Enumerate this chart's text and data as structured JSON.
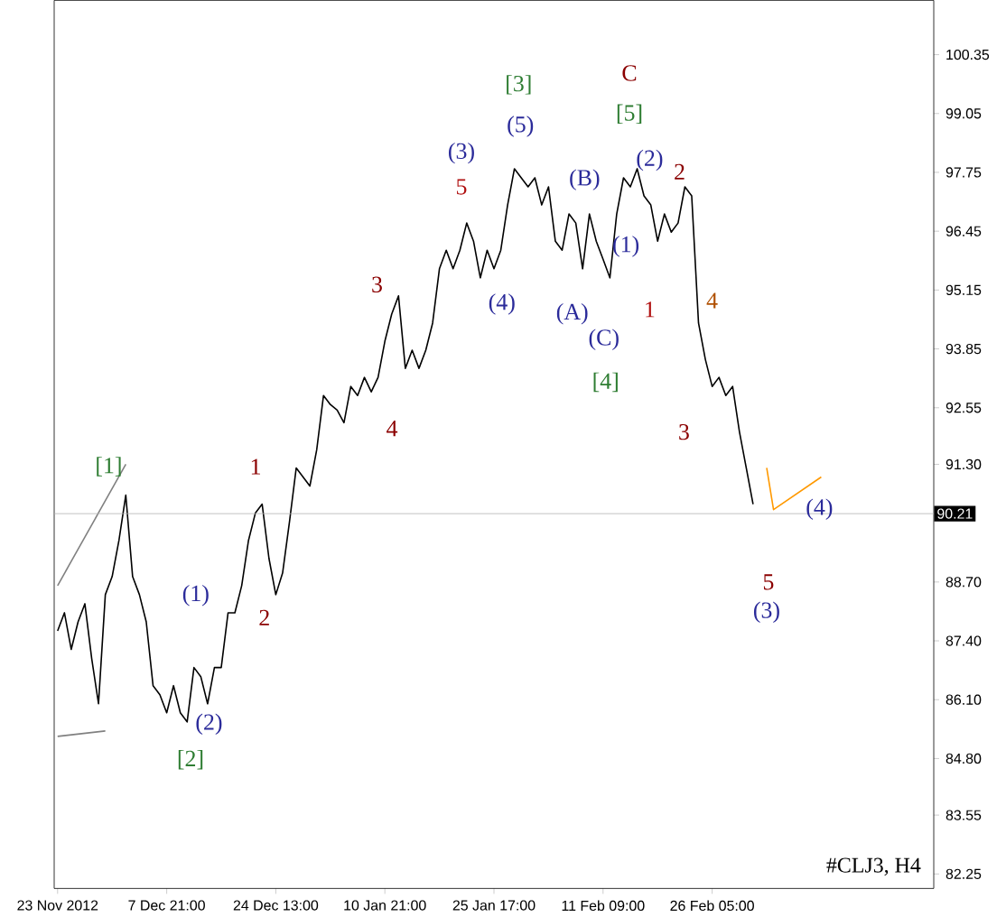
{
  "chart_data": {
    "type": "line",
    "categories": [
      "23 Nov 2012",
      null,
      null,
      null,
      null,
      null,
      null,
      null,
      null,
      null,
      null,
      null,
      null,
      null,
      null,
      null,
      "7 Dec 21:00",
      null,
      null,
      null,
      null,
      null,
      null,
      null,
      null,
      null,
      null,
      null,
      null,
      null,
      null,
      null,
      "24 Dec 13:00",
      null,
      null,
      null,
      null,
      null,
      null,
      null,
      null,
      null,
      null,
      null,
      null,
      null,
      null,
      null,
      "10 Jan 21:00",
      null,
      null,
      null,
      null,
      null,
      null,
      null,
      null,
      null,
      null,
      null,
      null,
      null,
      null,
      null,
      "25 Jan 17:00",
      null,
      null,
      null,
      null,
      null,
      null,
      null,
      null,
      null,
      null,
      null,
      null,
      null,
      null,
      null,
      "11 Feb 09:00",
      null,
      null,
      null,
      null,
      null,
      null,
      null,
      null,
      null,
      null,
      null,
      null,
      null,
      null,
      null,
      "26 Feb 05:00",
      null,
      null,
      null,
      null,
      null,
      null,
      null,
      null,
      null,
      null,
      null,
      null,
      null,
      null,
      null,
      null
    ],
    "ylim": [
      81.93,
      101.55
    ],
    "yticks": [
      {
        "value": 100.35,
        "label": "100.35"
      },
      {
        "value": 99.05,
        "label": "99.05"
      },
      {
        "value": 97.75,
        "label": "97.75"
      },
      {
        "value": 96.45,
        "label": "96.45"
      },
      {
        "value": 95.15,
        "label": "95.15"
      },
      {
        "value": 93.85,
        "label": "93.85"
      },
      {
        "value": 92.55,
        "label": "92.55"
      },
      {
        "value": 91.3,
        "label": "91.30"
      },
      {
        "value": 88.7,
        "label": "88.70"
      },
      {
        "value": 87.4,
        "label": "87.40"
      },
      {
        "value": 86.1,
        "label": "86.10"
      },
      {
        "value": 84.8,
        "label": "84.80"
      },
      {
        "value": 83.55,
        "label": "83.55"
      },
      {
        "value": 82.25,
        "label": "82.25"
      }
    ],
    "grid": false,
    "marker": "none",
    "line_style": "solid",
    "series": [
      {
        "color": "#000000",
        "values": [
          87.62,
          88.02,
          87.21,
          87.82,
          88.22,
          87.01,
          86.01,
          88.42,
          88.82,
          89.62,
          90.62,
          88.82,
          88.42,
          87.82,
          86.41,
          86.21,
          85.81,
          86.41,
          85.81,
          85.61,
          86.81,
          86.61,
          86.01,
          86.81,
          86.81,
          88.02,
          88.02,
          88.62,
          89.62,
          90.22,
          90.42,
          89.22,
          88.42,
          88.9,
          90.02,
          91.22,
          91.02,
          90.82,
          91.62,
          92.82,
          92.62,
          92.5,
          92.22,
          93.02,
          92.82,
          93.22,
          92.9,
          93.22,
          94.02,
          94.62,
          95.02,
          93.42,
          93.82,
          93.42,
          93.82,
          94.42,
          95.62,
          96.03,
          95.62,
          96.03,
          96.63,
          96.23,
          95.42,
          96.03,
          95.62,
          96.03,
          97.03,
          97.83,
          97.63,
          97.43,
          97.63,
          97.03,
          97.43,
          96.23,
          96.03,
          96.83,
          96.63,
          95.62,
          96.83,
          96.23,
          95.83,
          95.42,
          96.83,
          97.63,
          97.43,
          97.83,
          97.23,
          97.03,
          96.23,
          96.83,
          96.43,
          96.63,
          97.43,
          97.23,
          94.42,
          93.62,
          93.02,
          93.22,
          92.82,
          93.02,
          92.02,
          91.22,
          90.42,
          null,
          null,
          null,
          null,
          null,
          null,
          null,
          null,
          null,
          null
        ]
      },
      {
        "color": "#808080",
        "values": [
          88.62,
          null,
          null,
          null,
          null,
          null,
          null,
          null,
          null,
          null,
          91.3,
          null,
          null,
          null,
          null,
          null,
          null,
          null,
          null,
          null,
          null,
          null,
          null,
          null,
          null,
          null,
          null,
          null,
          null,
          null,
          null,
          null,
          null,
          null,
          null,
          null,
          null,
          null,
          null,
          null,
          null,
          null,
          null,
          null,
          null,
          null,
          null,
          null,
          null,
          null,
          null,
          null,
          null,
          null,
          null,
          null,
          null,
          null,
          null,
          null,
          null,
          null,
          null,
          null,
          null,
          null,
          null,
          null,
          null,
          null,
          null,
          null,
          null,
          null,
          null,
          null,
          null,
          null,
          null,
          null,
          null,
          null,
          null,
          null,
          null,
          null,
          null,
          null,
          null,
          null,
          null,
          null,
          null,
          null,
          null,
          null,
          null,
          null,
          null,
          null,
          null,
          null,
          null,
          null,
          null,
          null,
          null,
          null,
          null,
          null,
          null,
          null,
          null
        ]
      },
      {
        "color": "#808080",
        "values": [
          85.29,
          null,
          null,
          null,
          null,
          null,
          null,
          85.41,
          null,
          null,
          null,
          null,
          null,
          null,
          null,
          null,
          null,
          null,
          null,
          null,
          null,
          null,
          null,
          null,
          null,
          null,
          null,
          null,
          null,
          null,
          null,
          null,
          null,
          null,
          null,
          null,
          null,
          null,
          null,
          null,
          null,
          null,
          null,
          null,
          null,
          null,
          null,
          null,
          null,
          null,
          null,
          null,
          null,
          null,
          null,
          null,
          null,
          null,
          null,
          null,
          null,
          null,
          null,
          null,
          null,
          null,
          null,
          null,
          null,
          null,
          null,
          null,
          null,
          null,
          null,
          null,
          null,
          null,
          null,
          null,
          null,
          null,
          null,
          null,
          null,
          null,
          null,
          null,
          null,
          null,
          null,
          null,
          null,
          null,
          null,
          null,
          null,
          null,
          null,
          null,
          null,
          null,
          null,
          null,
          null,
          null,
          null,
          null,
          null,
          null,
          null,
          null,
          null
        ]
      },
      {
        "color": "#ff9900",
        "values": [
          null,
          null,
          null,
          null,
          null,
          null,
          null,
          null,
          null,
          null,
          null,
          null,
          null,
          null,
          null,
          null,
          null,
          null,
          null,
          null,
          null,
          null,
          null,
          null,
          null,
          null,
          null,
          null,
          null,
          null,
          null,
          null,
          null,
          null,
          null,
          null,
          null,
          null,
          null,
          null,
          null,
          null,
          null,
          null,
          null,
          null,
          null,
          null,
          null,
          null,
          null,
          null,
          null,
          null,
          null,
          null,
          null,
          null,
          null,
          null,
          null,
          null,
          null,
          null,
          null,
          null,
          null,
          null,
          null,
          null,
          null,
          null,
          null,
          null,
          null,
          null,
          null,
          null,
          null,
          null,
          null,
          null,
          null,
          null,
          null,
          null,
          null,
          null,
          null,
          null,
          null,
          null,
          null,
          null,
          null,
          null,
          null,
          null,
          null,
          null,
          null,
          null,
          null,
          null,
          91.22,
          90.3,
          null,
          null,
          null,
          null,
          null,
          null,
          91.02
        ]
      }
    ],
    "ref_lines": [
      {
        "axis": "y",
        "value": 90.21,
        "label": "90.21"
      }
    ],
    "annotations": [
      "[1]",
      "(1)",
      "(2)",
      "[2]",
      "1",
      "2",
      "3",
      "4",
      "(3)",
      "5",
      "(4)",
      "[3]",
      "(5)",
      "(B)",
      "(A)",
      "(C)",
      "[4]",
      "(1)",
      "C",
      "[5]",
      "(2)",
      "1",
      "2",
      "4",
      "3",
      "(4)",
      "5",
      "(3)",
      "#CLJ3, H4"
    ]
  }
}
